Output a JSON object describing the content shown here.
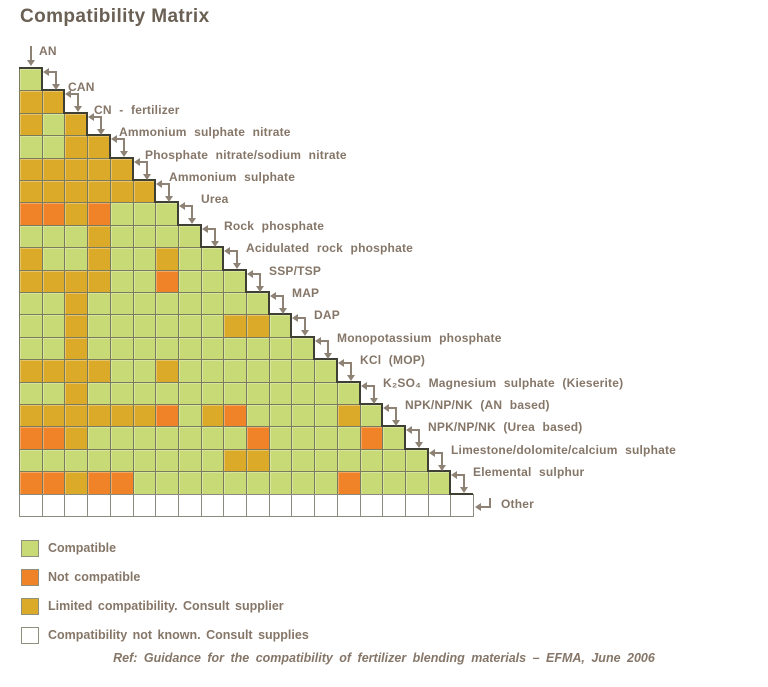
{
  "title": "Compatibility Matrix",
  "footer": "Ref: Guidance for the compatibility of fertilizer blending materials – EFMA, June 2006",
  "legend": [
    {
      "code": "G",
      "label": "Compatible"
    },
    {
      "code": "O",
      "label": "Not compatible"
    },
    {
      "code": "Y",
      "label": "Limited compatibility. Consult supplier"
    },
    {
      "code": "W",
      "label": "Compatibility not known. Consult supplies"
    }
  ],
  "colors": {
    "G": "#c8da76",
    "O": "#f08327",
    "Y": "#dbaa28",
    "W": "#ffffff",
    "grid": "#7a7a5c",
    "step": "#3f3f33",
    "arrow": "#8d8274",
    "text": "#857668",
    "title": "#6b6054"
  },
  "chart_data": {
    "type": "heatmap",
    "title": "Compatibility Matrix",
    "layout": "lower-triangular matrix, row i compared against columns 1..i, plus final 'Other' row of 20 unknown cells",
    "categories": [
      "AN",
      "CAN",
      "CN - fertilizer",
      "Ammonium sulphate nitrate",
      "Phosphate nitrate/sodium nitrate",
      "Ammonium sulphate",
      "Urea",
      "Rock phosphate",
      "Acidulated rock phosphate",
      "SSP/TSP",
      "MAP",
      "DAP",
      "Monopotassium phosphate",
      "KCl (MOP)",
      "K₂SO₄ Magnesium sulphate (Kieserite)",
      "NPK/NP/NK (AN based)",
      "NPK/NP/NK (Urea based)",
      "Limestone/dolomite/calcium sulphate",
      "Elemental sulphur",
      "Other"
    ],
    "rows": [
      "G",
      "YY",
      "YGY",
      "GGYY",
      "YYYYY",
      "YYYYYY",
      "OOYOGGG",
      "GGGYGGGG",
      "YGGYGGYGG",
      "YYYYGGOGGG",
      "GGYGGGGGGGG",
      "GGYGGGGGGYYG",
      "GGYGGGGGGGGGG",
      "YYYYGGYGGGGGGG",
      "GGYGGGGGGGGGGGG",
      "YYYYYYOGYOGGGGYG",
      "OOYGGGGGGGOGGGGOG",
      "GGGGGGGGGYYGGGGGGG",
      "OOYOOGGGGGGGGGOGGGG",
      "WWWWWWWWWWWWWWWWWWWW"
    ],
    "legend_map": {
      "G": "Compatible",
      "O": "Not compatible",
      "Y": "Limited compatibility. Consult supplier",
      "W": "Compatibility not known. Consult supplies"
    },
    "source": "Ref: Guidance for the compatibility of fertilizer blending materials – EFMA, June 2006"
  }
}
